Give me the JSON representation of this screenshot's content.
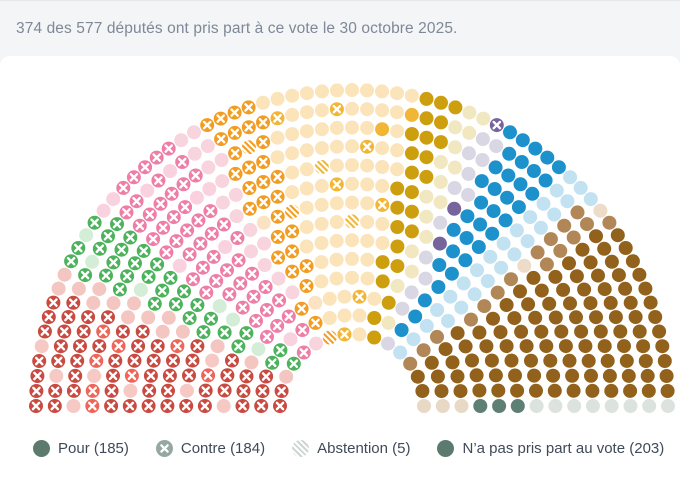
{
  "header": {
    "title": "374 des 577 députés ont pris part à ce vote le 30 octobre 2025."
  },
  "chart_data": {
    "type": "parliament-hemicycle",
    "title": "374 des 577 députés ont pris part à ce vote le 30 octobre 2025.",
    "total_seats": 577,
    "participants": 374,
    "results": {
      "pour": 185,
      "contre": 184,
      "abstention": 5,
      "none": 203
    },
    "legend": [
      {
        "label": "Pour",
        "count": 185,
        "display": "Pour (185)",
        "symbol": "solid-circle",
        "color": "#5d7a6e"
      },
      {
        "label": "Contre",
        "count": 184,
        "display": "Contre (184)",
        "symbol": "circle-x",
        "color": "#95a9a1"
      },
      {
        "label": "Abstention",
        "count": 5,
        "display": "Abstention (5)",
        "symbol": "hatched-circle",
        "color": "#ccd6d2"
      },
      {
        "label": "N’a pas pris part au vote",
        "count": 203,
        "display": "N’a pas pris part au vote (203)",
        "symbol": "solid-circle",
        "color": "#5d7a6e"
      }
    ],
    "marker_semantics": {
      "pour": "solid party color",
      "contre": "party color with white x",
      "abstention": "hatched party color",
      "none": "pale party color"
    },
    "groups": [
      {
        "name": "red",
        "color": "#c94a41",
        "pale": "#f6c9c4",
        "alt": {
          "color": "#ee655a",
          "count": 10
        },
        "pattern": "scatter",
        "votes": {
          "contre": 63,
          "none": 8
        }
      },
      {
        "name": "pale-red-band",
        "color": "#c94a41",
        "pale": "#f4c6c1",
        "pattern": "minor-first",
        "votes": {
          "contre": 2,
          "none": 15
        }
      },
      {
        "name": "green",
        "color": "#4cb25c",
        "pale": "#d3edd6",
        "pattern": "scatter",
        "votes": {
          "contre": 32,
          "none": 6
        }
      },
      {
        "name": "pink",
        "color": "#ee7ea6",
        "pale": "#fad2df",
        "pattern": "scatter",
        "votes": {
          "contre": 50,
          "none": 9
        }
      },
      {
        "name": "pale-pink-band",
        "color": "#ee7ea6",
        "pale": "#f7d4de",
        "pattern": "scatter",
        "votes": {
          "none": 17
        }
      },
      {
        "name": "orange",
        "color": "#f29d22",
        "pale": "#fbe2c2",
        "pattern": "scatter",
        "votes": {
          "contre": 29,
          "abstention": 3,
          "none": 2
        }
      },
      {
        "name": "cream-gold",
        "color": "#f2b636",
        "pale": "#fbe4ba",
        "pattern": "scatter",
        "votes": {
          "contre": 7,
          "abstention": 2,
          "pour": 2,
          "none": 78
        }
      },
      {
        "name": "mustard",
        "color": "#cd9f0f",
        "pale": "#f1e7c1",
        "pattern": "scatter",
        "votes": {
          "pour": 25
        }
      },
      {
        "name": "ivory-band",
        "color": "#cd9f0f",
        "pale": "#f1e7c1",
        "pattern": "scatter",
        "votes": {
          "none": 16
        }
      },
      {
        "name": "lavender",
        "color": "#75659c",
        "pale": "#d9d7e3",
        "pattern": "scatter",
        "votes": {
          "contre": 1,
          "pour": 2,
          "none": 13
        }
      },
      {
        "name": "blue",
        "color": "#1d91cc",
        "pale": "#c2e2f2",
        "pattern": "scatter",
        "votes": {
          "pour": 34
        }
      },
      {
        "name": "pale-blue-band",
        "color": "#1d91cc",
        "pale": "#c2e2f2",
        "pattern": "scatter",
        "votes": {
          "none": 26
        }
      },
      {
        "name": "tan",
        "color": "#b28757",
        "pale": "#ecdcc8",
        "pattern": "scatter",
        "votes": {
          "pour": 16,
          "none": 2
        }
      },
      {
        "name": "brown",
        "color": "#92611b",
        "pale": "#e8d9c6",
        "pattern": "minor-last",
        "votes": {
          "pour": 103,
          "none": 3
        }
      },
      {
        "name": "teal",
        "color": "#5d7f74",
        "pale": "#dce3df",
        "pattern": "minor-first",
        "votes": {
          "pour": 3,
          "none": 8
        }
      }
    ]
  }
}
